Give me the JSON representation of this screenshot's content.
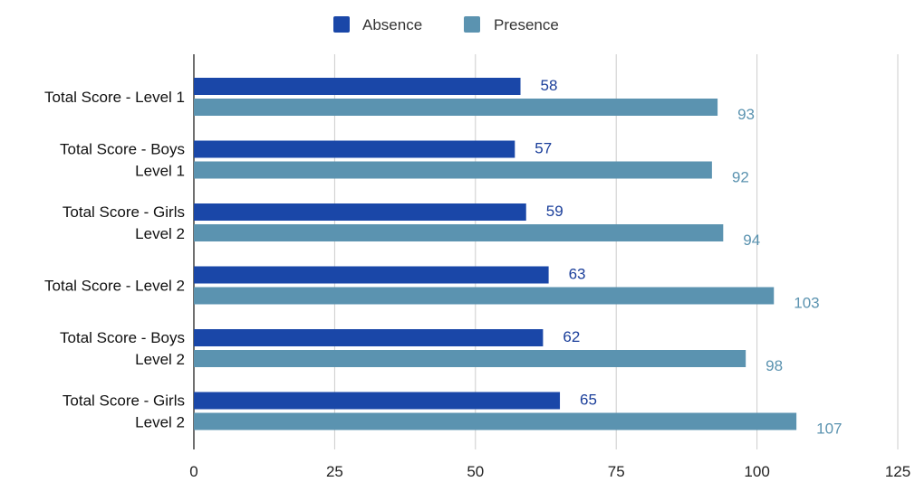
{
  "chart_data": {
    "type": "bar",
    "orientation": "horizontal",
    "categories": [
      "Total Score - Level 1",
      "Total Score - Boys Level 1",
      "Total Score - Girls Level 2",
      "Total Score - Level 2",
      "Total Score - Boys Level 2",
      "Total Score - Girls Level 2"
    ],
    "category_lines": [
      [
        "Total Score - Level 1"
      ],
      [
        "Total Score - Boys",
        "Level 1"
      ],
      [
        "Total Score - Girls",
        "Level 2"
      ],
      [
        "Total Score - Level 2"
      ],
      [
        "Total Score - Boys",
        "Level 2"
      ],
      [
        "Total Score - Girls",
        "Level 2"
      ]
    ],
    "series": [
      {
        "name": "Absence",
        "color": "#1a47a8",
        "label_color": "#1a3e9a",
        "values": [
          58,
          57,
          59,
          63,
          62,
          65
        ]
      },
      {
        "name": "Presence",
        "color": "#5b93b0",
        "label_color": "#5b93b0",
        "values": [
          93,
          92,
          94,
          103,
          98,
          107
        ]
      }
    ],
    "xlim": [
      0,
      125
    ],
    "xticks": [
      "0",
      "25",
      "50",
      "75",
      "100",
      "125"
    ],
    "xtick_values": [
      0,
      25,
      50,
      75,
      100,
      125
    ],
    "title": "",
    "xlabel": "",
    "ylabel": "",
    "grid": "vertical",
    "legend": "top-center"
  }
}
